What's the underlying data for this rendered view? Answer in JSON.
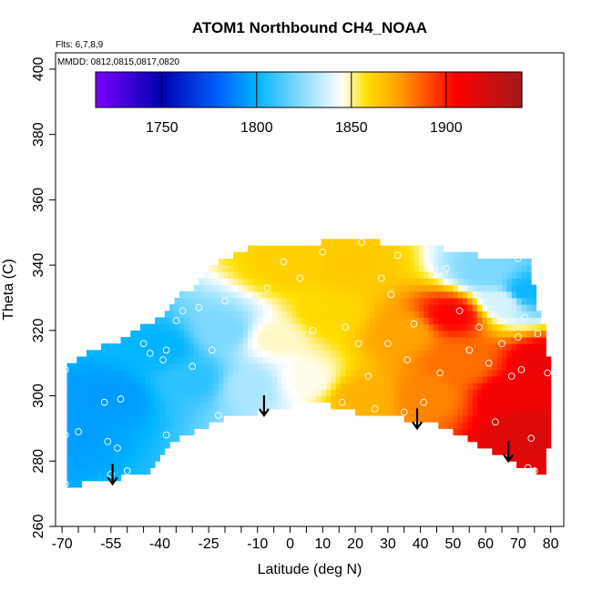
{
  "chart_data": {
    "type": "heatmap",
    "title": "ATOM1 Northbound CH4_NOAA",
    "subtitle_flights": "Flts: 6,7,8,9",
    "subtitle_dates": "MMDD: 0812,0815,0817,0820",
    "xlabel": "Latitude (deg N)",
    "ylabel": "Theta (C)",
    "xlim": [
      -72,
      84
    ],
    "ylim": [
      260,
      405
    ],
    "x_ticks": [
      -70,
      -55,
      -40,
      -25,
      -10,
      0,
      10,
      20,
      30,
      40,
      50,
      60,
      70,
      80
    ],
    "x_tick_labels": [
      "-70",
      "-55",
      "-40",
      "-25",
      "-10",
      "0",
      "10",
      "20",
      "30",
      "40",
      "50",
      "60",
      "70",
      "80"
    ],
    "x_minor_ticks": [
      -65,
      -60,
      -50,
      -45,
      -35,
      -30,
      -20,
      -15,
      -5,
      5,
      15,
      25,
      35,
      45,
      55,
      65,
      75
    ],
    "y_ticks": [
      260,
      280,
      300,
      320,
      340,
      360,
      380,
      400
    ],
    "y_tick_labels": [
      "260",
      "280",
      "300",
      "320",
      "340",
      "360",
      "380",
      "400"
    ],
    "colorbar": {
      "min": 1715,
      "max": 1940,
      "ticks": [
        1750,
        1800,
        1850,
        1900
      ],
      "tick_labels": [
        "1750",
        "1800",
        "1850",
        "1900"
      ],
      "colors": [
        "#7b00ff",
        "#0000b0",
        "#0060ff",
        "#00b4ff",
        "#ffffff",
        "#ffe000",
        "#ffa000",
        "#ff0000",
        "#a01a1a"
      ]
    },
    "tropopause_arrows": [
      {
        "lat": -54.5,
        "theta": 273
      },
      {
        "lat": -8,
        "theta": 294
      },
      {
        "lat": 39,
        "theta": 290
      },
      {
        "lat": 67,
        "theta": 280
      }
    ],
    "field": {
      "boundary": [
        [
          -69,
          273
        ],
        [
          -64,
          273
        ],
        [
          -60,
          275
        ],
        [
          -52,
          275
        ],
        [
          -43,
          277
        ],
        [
          -37,
          286
        ],
        [
          -27,
          290
        ],
        [
          -20,
          293
        ],
        [
          -10,
          295
        ],
        [
          0,
          297
        ],
        [
          8,
          298
        ],
        [
          16,
          296
        ],
        [
          25,
          294
        ],
        [
          35,
          293
        ],
        [
          45,
          291
        ],
        [
          52,
          288
        ],
        [
          60,
          284
        ],
        [
          70,
          279
        ],
        [
          79,
          276
        ],
        [
          80,
          306
        ],
        [
          78,
          322
        ],
        [
          76,
          327
        ],
        [
          73,
          343
        ],
        [
          64,
          341
        ],
        [
          55,
          344
        ],
        [
          47,
          345
        ],
        [
          38,
          346
        ],
        [
          28,
          347
        ],
        [
          20,
          347.5
        ],
        [
          10,
          347
        ],
        [
          0,
          346
        ],
        [
          -10,
          346
        ],
        [
          -18,
          343
        ],
        [
          -24,
          340
        ],
        [
          -28,
          334
        ],
        [
          -34,
          331
        ],
        [
          -40,
          324
        ],
        [
          -47,
          320
        ],
        [
          -52,
          317
        ],
        [
          -60,
          314
        ],
        [
          -69,
          309
        ]
      ],
      "anchors": [
        {
          "lat": -69,
          "theta": 290,
          "ch4": 1795
        },
        {
          "lat": -55,
          "theta": 300,
          "ch4": 1794
        },
        {
          "lat": -40,
          "theta": 315,
          "ch4": 1800
        },
        {
          "lat": -30,
          "theta": 305,
          "ch4": 1808
        },
        {
          "lat": -20,
          "theta": 320,
          "ch4": 1822
        },
        {
          "lat": -12,
          "theta": 303,
          "ch4": 1830
        },
        {
          "lat": -5,
          "theta": 318,
          "ch4": 1848
        },
        {
          "lat": 0,
          "theta": 340,
          "ch4": 1862
        },
        {
          "lat": 5,
          "theta": 305,
          "ch4": 1846
        },
        {
          "lat": 12,
          "theta": 325,
          "ch4": 1860
        },
        {
          "lat": 20,
          "theta": 340,
          "ch4": 1864
        },
        {
          "lat": 22,
          "theta": 300,
          "ch4": 1870
        },
        {
          "lat": 35,
          "theta": 320,
          "ch4": 1874
        },
        {
          "lat": 42,
          "theta": 300,
          "ch4": 1880
        },
        {
          "lat": 50,
          "theta": 325,
          "ch4": 1905
        },
        {
          "lat": 52,
          "theta": 310,
          "ch4": 1884
        },
        {
          "lat": 60,
          "theta": 338,
          "ch4": 1822
        },
        {
          "lat": 65,
          "theta": 329,
          "ch4": 1838
        },
        {
          "lat": 68,
          "theta": 300,
          "ch4": 1910
        },
        {
          "lat": 72,
          "theta": 290,
          "ch4": 1918
        },
        {
          "lat": 72,
          "theta": 332,
          "ch4": 1802
        },
        {
          "lat": 78,
          "theta": 310,
          "ch4": 1912
        }
      ]
    },
    "sample_points": [
      [
        -69,
        308
      ],
      [
        -69,
        288
      ],
      [
        -69,
        273
      ],
      [
        -65,
        289
      ],
      [
        -60,
        272
      ],
      [
        -57,
        298
      ],
      [
        -56,
        286
      ],
      [
        -55,
        276
      ],
      [
        -53,
        284
      ],
      [
        -52,
        299
      ],
      [
        -50,
        277
      ],
      [
        -45,
        316
      ],
      [
        -43,
        313
      ],
      [
        -39,
        311
      ],
      [
        -38,
        288
      ],
      [
        -38,
        314
      ],
      [
        -35,
        323
      ],
      [
        -33,
        326
      ],
      [
        -30,
        309
      ],
      [
        -28,
        327
      ],
      [
        -24,
        314
      ],
      [
        -22,
        294
      ],
      [
        -20,
        329
      ],
      [
        -12,
        316
      ],
      [
        -7,
        333
      ],
      [
        -4,
        311
      ],
      [
        -2,
        341
      ],
      [
        3,
        336
      ],
      [
        5,
        297
      ],
      [
        7,
        320
      ],
      [
        10,
        344
      ],
      [
        16,
        298
      ],
      [
        17,
        321
      ],
      [
        21,
        316
      ],
      [
        22,
        347
      ],
      [
        24,
        306
      ],
      [
        26,
        296
      ],
      [
        28,
        336
      ],
      [
        30,
        316
      ],
      [
        31,
        331
      ],
      [
        33,
        343
      ],
      [
        35,
        295
      ],
      [
        36,
        311
      ],
      [
        38,
        322
      ],
      [
        41,
        298
      ],
      [
        43,
        339
      ],
      [
        46,
        307
      ],
      [
        48,
        339
      ],
      [
        52,
        326
      ],
      [
        55,
        314
      ],
      [
        58,
        321
      ],
      [
        61,
        310
      ],
      [
        63,
        292
      ],
      [
        65,
        316
      ],
      [
        68,
        306
      ],
      [
        70,
        342
      ],
      [
        70,
        318
      ],
      [
        71,
        308
      ],
      [
        72,
        324
      ],
      [
        73,
        278
      ],
      [
        74,
        287
      ],
      [
        75,
        277
      ],
      [
        76,
        319
      ],
      [
        79,
        307
      ],
      [
        80,
        277
      ]
    ]
  }
}
